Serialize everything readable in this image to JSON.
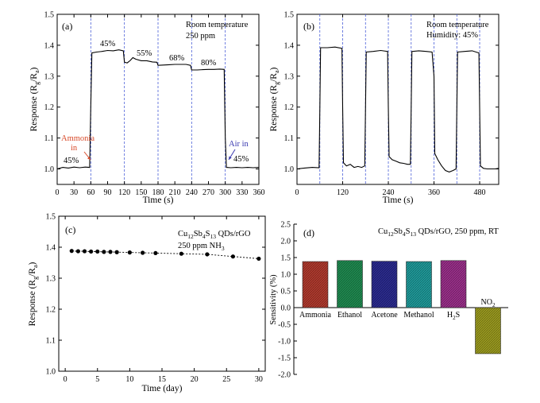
{
  "chart_data": [
    {
      "id": "a",
      "type": "line",
      "panel_label": "(a)",
      "xlabel": "Time (s)",
      "ylabel_main": "Response (R",
      "ylabel_sub1": "g",
      "ylabel_mid": "/R",
      "ylabel_sub2": "a",
      "ylabel_end": ")",
      "xlim": [
        0,
        360
      ],
      "ylim": [
        0.95,
        1.5
      ],
      "xticks": [
        "0",
        "30",
        "60",
        "90",
        "120",
        "150",
        "180",
        "210",
        "240",
        "270",
        "300",
        "330",
        "360"
      ],
      "yticks": [
        "1.0",
        "1.1",
        "1.2",
        "1.3",
        "1.4",
        "1.5"
      ],
      "annotations": [
        "Room temperature",
        "250 ppm"
      ],
      "humidity_labels": [
        "45%",
        "45%",
        "55%",
        "68%",
        "80%",
        "45%"
      ],
      "arrow_labels": [
        {
          "line1": "Ammonia",
          "line2": "in",
          "color": "#d84a2a"
        },
        {
          "line1": "Air in",
          "line2": "",
          "color": "#3a3ab0"
        }
      ],
      "switch_times": [
        60,
        120,
        180,
        240,
        300
      ],
      "series": [
        {
          "x": [
            0,
            10,
            20,
            30,
            40,
            50,
            58,
            60,
            62,
            70,
            80,
            90,
            100,
            110,
            118,
            120,
            125,
            130,
            135,
            140,
            150,
            160,
            170,
            178,
            180,
            190,
            200,
            210,
            220,
            230,
            238,
            240,
            250,
            260,
            270,
            280,
            290,
            298,
            300,
            302,
            310,
            320,
            330,
            340,
            350,
            360
          ],
          "y": [
            1.0,
            1.005,
            1.003,
            1.006,
            1.004,
            1.006,
            1.005,
            1.2,
            1.375,
            1.378,
            1.38,
            1.383,
            1.382,
            1.385,
            1.382,
            1.345,
            1.343,
            1.35,
            1.36,
            1.355,
            1.35,
            1.35,
            1.346,
            1.345,
            1.335,
            1.336,
            1.337,
            1.338,
            1.338,
            1.338,
            1.335,
            1.32,
            1.32,
            1.321,
            1.322,
            1.322,
            1.323,
            1.322,
            1.1,
            1.005,
            1.004,
            1.005,
            1.004,
            1.005,
            1.004,
            1.005
          ]
        }
      ]
    },
    {
      "id": "b",
      "type": "line",
      "panel_label": "(b)",
      "xlabel": "Time (s)",
      "ylabel_main": "Response (R",
      "ylabel_sub1": "g",
      "ylabel_mid": "/R",
      "ylabel_sub2": "a",
      "ylabel_end": ")",
      "xlim": [
        0,
        530
      ],
      "ylim": [
        0.95,
        1.5
      ],
      "xticks": [
        "0",
        "120",
        "240",
        "360",
        "480"
      ],
      "xtick_values": [
        0,
        120,
        240,
        360,
        480
      ],
      "yticks": [
        "1.0",
        "1.1",
        "1.2",
        "1.3",
        "1.4",
        "1.5"
      ],
      "annotations": [
        "Room temperature",
        "Humidity: 45%"
      ],
      "switch_times": [
        60,
        120,
        180,
        240,
        300,
        360,
        420,
        480
      ],
      "series": [
        {
          "x": [
            0,
            20,
            40,
            58,
            60,
            62,
            80,
            100,
            118,
            120,
            122,
            130,
            140,
            150,
            160,
            170,
            178,
            180,
            182,
            200,
            220,
            238,
            240,
            242,
            250,
            260,
            270,
            280,
            290,
            298,
            300,
            302,
            320,
            340,
            355,
            360,
            362,
            370,
            380,
            390,
            400,
            410,
            418,
            420,
            422,
            440,
            460,
            478,
            480,
            482,
            490,
            500,
            510,
            520,
            530
          ],
          "y": [
            1.0,
            1.003,
            1.005,
            1.004,
            1.2,
            1.392,
            1.392,
            1.394,
            1.39,
            1.2,
            1.02,
            1.01,
            1.015,
            1.005,
            1.008,
            1.005,
            1.01,
            1.2,
            1.378,
            1.38,
            1.383,
            1.38,
            1.2,
            1.04,
            1.03,
            1.025,
            1.02,
            1.018,
            1.015,
            1.015,
            1.2,
            1.38,
            1.382,
            1.38,
            1.378,
            1.3,
            1.05,
            1.03,
            1.01,
            0.995,
            0.99,
            0.995,
            1.0,
            1.2,
            1.378,
            1.38,
            1.382,
            1.375,
            1.2,
            1.01,
            1.002,
            1.0,
            1.0,
            1.0,
            1.002
          ]
        }
      ]
    },
    {
      "id": "c",
      "type": "scatter",
      "panel_label": "(c)",
      "xlabel": "Time (day)",
      "ylabel_main": "Response (R",
      "ylabel_sub1": "g",
      "ylabel_mid": "/R",
      "ylabel_sub2": "a",
      "ylabel_end": ")",
      "xlim": [
        -1,
        31
      ],
      "ylim": [
        1.0,
        1.5
      ],
      "xticks": [
        "0",
        "5",
        "10",
        "15",
        "20",
        "25",
        "30"
      ],
      "yticks": [
        "1.0",
        "1.1",
        "1.2",
        "1.3",
        "1.4",
        "1.5"
      ],
      "annotation_material": {
        "a": "Cu",
        "s1": "12",
        "b": "Sb",
        "s2": "4",
        "c": "S",
        "s3": "13",
        "d": " QDs/rGO"
      },
      "annotation_conc": {
        "a": "250 ppm NH",
        "s": "3"
      },
      "series": [
        {
          "x": [
            1,
            2,
            3,
            4,
            5,
            6,
            7,
            8,
            10,
            12,
            14,
            18,
            22,
            26,
            30
          ],
          "y": [
            1.388,
            1.387,
            1.387,
            1.386,
            1.386,
            1.385,
            1.385,
            1.384,
            1.383,
            1.382,
            1.381,
            1.379,
            1.377,
            1.37,
            1.363
          ]
        }
      ]
    },
    {
      "id": "d",
      "type": "bar",
      "panel_label": "(d)",
      "ylabel": "Sensitivity (%)",
      "ylim": [
        -2.0,
        2.5
      ],
      "yticks": [
        "2.5",
        "2.0",
        "1.5",
        "1.0",
        "0.5",
        "0.0",
        "-0.5",
        "-1.0",
        "-1.5",
        "-2.0"
      ],
      "title_material": {
        "a": "Cu",
        "s1": "12",
        "b": "Sb",
        "s2": "4",
        "c": "S",
        "s3": "13",
        "d": " QDs/rGO, 250 ppm, RT"
      },
      "categories": [
        "Ammonia",
        "Ethanol",
        "Acetone",
        "Methanol",
        "H",
        "NO"
      ],
      "category_subs": [
        "",
        "",
        "",
        "",
        "2",
        "2"
      ],
      "category_tails": [
        "",
        "",
        "",
        "",
        "S",
        ""
      ],
      "values": [
        1.38,
        1.41,
        1.39,
        1.38,
        1.41,
        -1.38
      ],
      "colors": [
        "#b03a2e",
        "#1f8a50",
        "#2b2b8f",
        "#1f9a9a",
        "#9a2f8a",
        "#9a9a1f"
      ]
    }
  ]
}
